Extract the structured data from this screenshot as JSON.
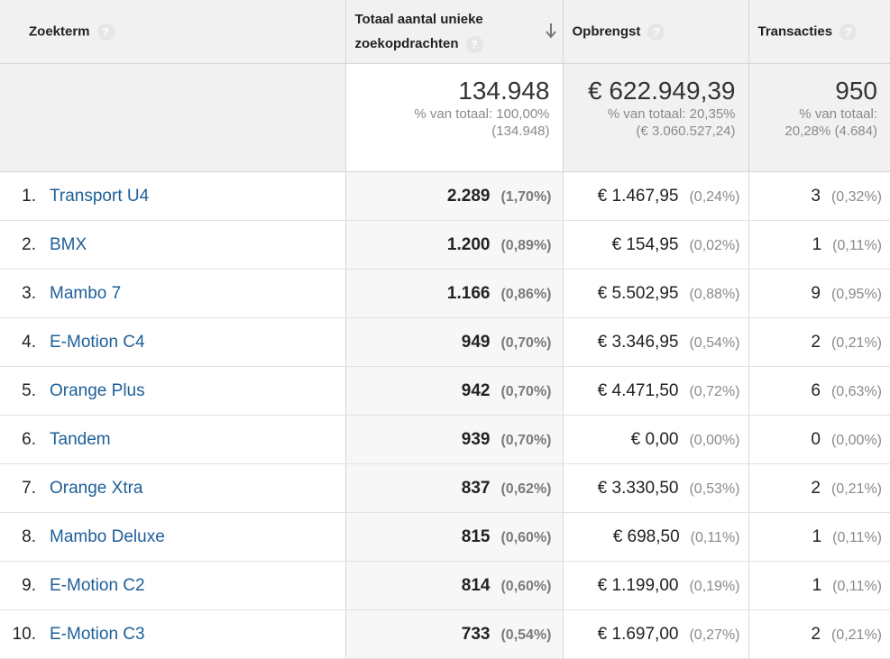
{
  "headers": {
    "term": "Zoekterm",
    "zoek": "Totaal aantal unieke zoekopdrachten",
    "opbrengst": "Opbrengst",
    "transacties": "Transacties",
    "help": "?"
  },
  "totals": {
    "zoek": {
      "value": "134.948",
      "line1": "% van totaal: 100,00%",
      "line2": "(134.948)"
    },
    "opbrengst": {
      "value": "€ 622.949,39",
      "line1": "% van totaal: 20,35%",
      "line2": "(€ 3.060.527,24)"
    },
    "transacties": {
      "value": "950",
      "line1": "% van totaal:",
      "line2": "20,28% (4.684)"
    }
  },
  "rows": [
    {
      "index": "1.",
      "term": "Transport U4",
      "zoek": "2.289",
      "zoek_pct": "(1,70%)",
      "opbrengst": "€ 1.467,95",
      "opbrengst_pct": "(0,24%)",
      "transacties": "3",
      "transacties_pct": "(0,32%)"
    },
    {
      "index": "2.",
      "term": "BMX",
      "zoek": "1.200",
      "zoek_pct": "(0,89%)",
      "opbrengst": "€ 154,95",
      "opbrengst_pct": "(0,02%)",
      "transacties": "1",
      "transacties_pct": "(0,11%)"
    },
    {
      "index": "3.",
      "term": "Mambo 7",
      "zoek": "1.166",
      "zoek_pct": "(0,86%)",
      "opbrengst": "€ 5.502,95",
      "opbrengst_pct": "(0,88%)",
      "transacties": "9",
      "transacties_pct": "(0,95%)"
    },
    {
      "index": "4.",
      "term": "E-Motion C4",
      "zoek": "949",
      "zoek_pct": "(0,70%)",
      "opbrengst": "€ 3.346,95",
      "opbrengst_pct": "(0,54%)",
      "transacties": "2",
      "transacties_pct": "(0,21%)"
    },
    {
      "index": "5.",
      "term": "Orange Plus",
      "zoek": "942",
      "zoek_pct": "(0,70%)",
      "opbrengst": "€ 4.471,50",
      "opbrengst_pct": "(0,72%)",
      "transacties": "6",
      "transacties_pct": "(0,63%)"
    },
    {
      "index": "6.",
      "term": "Tandem",
      "zoek": "939",
      "zoek_pct": "(0,70%)",
      "opbrengst": "€ 0,00",
      "opbrengst_pct": "(0,00%)",
      "transacties": "0",
      "transacties_pct": "(0,00%)"
    },
    {
      "index": "7.",
      "term": "Orange Xtra",
      "zoek": "837",
      "zoek_pct": "(0,62%)",
      "opbrengst": "€ 3.330,50",
      "opbrengst_pct": "(0,53%)",
      "transacties": "2",
      "transacties_pct": "(0,21%)"
    },
    {
      "index": "8.",
      "term": "Mambo Deluxe",
      "zoek": "815",
      "zoek_pct": "(0,60%)",
      "opbrengst": "€ 698,50",
      "opbrengst_pct": "(0,11%)",
      "transacties": "1",
      "transacties_pct": "(0,11%)"
    },
    {
      "index": "9.",
      "term": "E-Motion C2",
      "zoek": "814",
      "zoek_pct": "(0,60%)",
      "opbrengst": "€ 1.199,00",
      "opbrengst_pct": "(0,19%)",
      "transacties": "1",
      "transacties_pct": "(0,11%)"
    },
    {
      "index": "10.",
      "term": "E-Motion C3",
      "zoek": "733",
      "zoek_pct": "(0,54%)",
      "opbrengst": "€ 1.697,00",
      "opbrengst_pct": "(0,27%)",
      "transacties": "2",
      "transacties_pct": "(0,21%)"
    }
  ],
  "sort": {
    "column": "zoek",
    "direction": "descending",
    "icon": "arrow-down-icon"
  },
  "colors": {
    "link": "#1e5f9a",
    "header_bg": "#f1f1f1",
    "muted": "#8a8a8a"
  }
}
